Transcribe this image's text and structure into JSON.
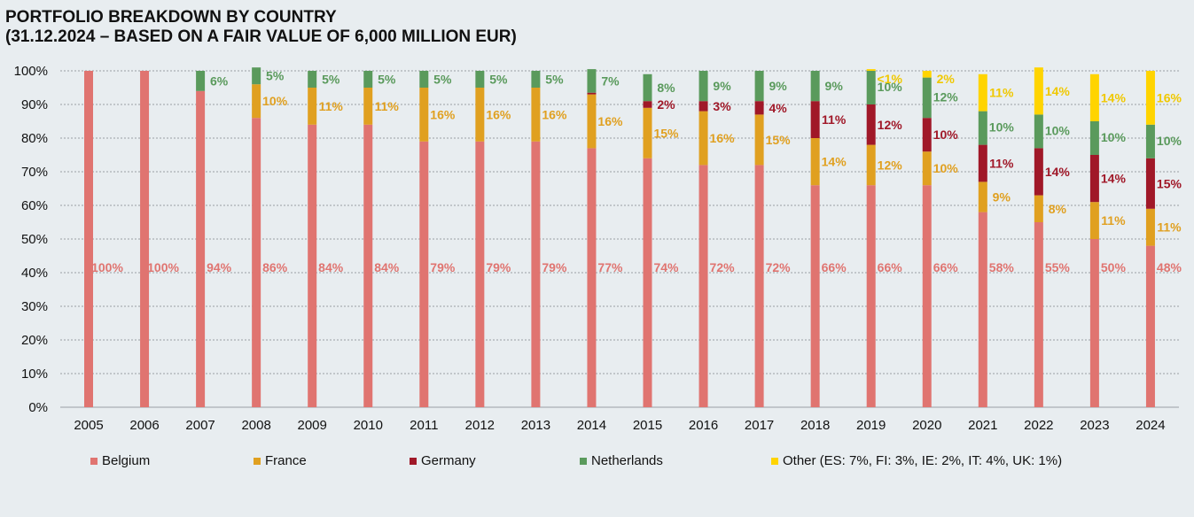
{
  "title_line1": "PORTFOLIO BREAKDOWN BY COUNTRY",
  "title_line2": "(31.12.2024 – BASED ON A FAIR VALUE OF 6,000 MILLION EUR)",
  "chart_data": {
    "type": "bar",
    "stacked": true,
    "normalized": true,
    "categories": [
      "2005",
      "2006",
      "2007",
      "2008",
      "2009",
      "2010",
      "2011",
      "2012",
      "2013",
      "2014",
      "2015",
      "2016",
      "2017",
      "2018",
      "2019",
      "2020",
      "2021",
      "2022",
      "2023",
      "2024"
    ],
    "yticks": [
      "0%",
      "10%",
      "20%",
      "30%",
      "40%",
      "50%",
      "60%",
      "70%",
      "80%",
      "90%",
      "100%"
    ],
    "ylim": [
      0,
      100
    ],
    "grid": true,
    "legend_position": "bottom",
    "series": [
      {
        "name": "Belgium",
        "color": "#e07470",
        "label_color": "#e07470",
        "values": [
          100,
          100,
          94,
          86,
          84,
          84,
          79,
          79,
          79,
          77,
          74,
          72,
          72,
          66,
          66,
          66,
          58,
          55,
          50,
          48
        ],
        "labels": [
          "100%",
          "100%",
          "94%",
          "86%",
          "84%",
          "84%",
          "79%",
          "79%",
          "79%",
          "77%",
          "74%",
          "72%",
          "72%",
          "66%",
          "66%",
          "66%",
          "58%",
          "55%",
          "50%",
          "48%"
        ]
      },
      {
        "name": "France",
        "color": "#e0a020",
        "label_color": "#e0a020",
        "values": [
          0,
          0,
          0,
          10,
          11,
          11,
          16,
          16,
          16,
          16,
          15,
          16,
          15,
          14,
          12,
          10,
          9,
          8,
          11,
          11
        ],
        "labels": [
          "",
          "",
          "",
          "10%",
          "11%",
          "11%",
          "16%",
          "16%",
          "16%",
          "16%",
          "15%",
          "16%",
          "15%",
          "14%",
          "12%",
          "10%",
          "9%",
          "8%",
          "11%",
          "11%"
        ]
      },
      {
        "name": "Germany",
        "color": "#a01828",
        "label_color": "#a01828",
        "values": [
          0,
          0,
          0,
          0,
          0,
          0,
          0,
          0,
          0,
          0.5,
          2,
          3,
          4,
          11,
          12,
          10,
          11,
          14,
          14,
          15
        ],
        "labels": [
          "",
          "",
          "",
          "",
          "",
          "",
          "",
          "",
          "",
          "",
          "2%",
          "3%",
          "4%",
          "11%",
          "12%",
          "10%",
          "11%",
          "14%",
          "14%",
          "15%"
        ]
      },
      {
        "name": "Netherlands",
        "color": "#5a9a5c",
        "label_color": "#5a9a5c",
        "values": [
          0,
          0,
          6,
          5,
          5,
          5,
          5,
          5,
          5,
          7,
          8,
          9,
          9,
          9,
          10,
          12,
          10,
          10,
          10,
          10
        ],
        "labels": [
          "",
          "",
          "6%",
          "5%",
          "5%",
          "5%",
          "5%",
          "5%",
          "5%",
          "7%",
          "8%",
          "9%",
          "9%",
          "9%",
          "10%",
          "12%",
          "10%",
          "10%",
          "10%",
          "10%"
        ]
      },
      {
        "name": "Other (ES: 7%, FI: 3%, IE: 2%, IT: 4%, UK: 1%)",
        "color": "#ffd400",
        "label_color": "#f0c800",
        "values": [
          0,
          0,
          0,
          0,
          0,
          0,
          0,
          0,
          0,
          0,
          0,
          0,
          0,
          0,
          0.5,
          2,
          11,
          14,
          14,
          16
        ],
        "labels": [
          "",
          "",
          "",
          "",
          "",
          "",
          "",
          "",
          "",
          "",
          "",
          "",
          "",
          "",
          "<1%",
          "2%",
          "11%",
          "14%",
          "14%",
          "16%"
        ]
      }
    ]
  }
}
